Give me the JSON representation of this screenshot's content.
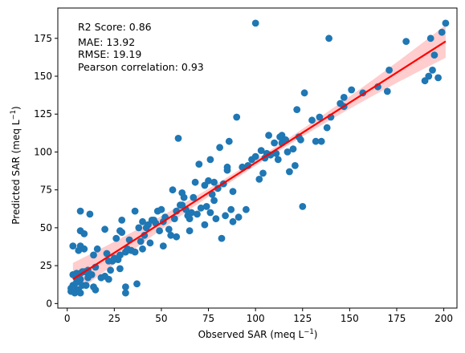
{
  "chart_data": {
    "type": "scatter",
    "title": "",
    "xlabel": "Observed SAR (meq L",
    "xlabel_sup": "−1",
    "xlabel_suffix": ")",
    "ylabel": "Predicted SAR (meq L",
    "ylabel_sup": "−1",
    "ylabel_suffix": ")",
    "xlim": [
      -5,
      207
    ],
    "ylim": [
      -3,
      195
    ],
    "xticks": [
      0,
      25,
      50,
      75,
      100,
      125,
      150,
      175,
      200
    ],
    "yticks": [
      0,
      25,
      50,
      75,
      100,
      125,
      150,
      175
    ],
    "grid": false,
    "stats": [
      "R2 Score: 0.86",
      "MAE: 13.92",
      "RMSE: 19.19",
      "Pearson correlation: 0.93"
    ],
    "colors": {
      "points": "#1f77b4",
      "fit_line": "#ff0000",
      "ci_band": "#ffc0c0"
    },
    "fit_line": {
      "x": [
        3,
        201
      ],
      "y": [
        16,
        173
      ]
    },
    "series": [
      {
        "values_xy": [
          [
            2,
            8
          ],
          [
            2,
            10
          ],
          [
            3,
            12
          ],
          [
            3,
            19
          ],
          [
            3,
            38
          ],
          [
            4,
            7
          ],
          [
            4,
            10
          ],
          [
            5,
            14
          ],
          [
            5,
            17
          ],
          [
            5,
            20
          ],
          [
            6,
            35
          ],
          [
            6,
            9
          ],
          [
            7,
            7
          ],
          [
            7,
            20
          ],
          [
            7,
            38
          ],
          [
            7,
            48
          ],
          [
            7,
            61
          ],
          [
            7,
            16
          ],
          [
            8,
            12
          ],
          [
            8,
            21
          ],
          [
            9,
            21
          ],
          [
            9,
            46
          ],
          [
            9,
            36
          ],
          [
            10,
            12
          ],
          [
            11,
            22
          ],
          [
            11,
            20
          ],
          [
            11,
            17
          ],
          [
            12,
            59
          ],
          [
            13,
            19
          ],
          [
            14,
            32
          ],
          [
            14,
            11
          ],
          [
            15,
            9
          ],
          [
            15,
            24
          ],
          [
            16,
            36
          ],
          [
            18,
            17
          ],
          [
            20,
            18
          ],
          [
            20,
            49
          ],
          [
            21,
            33
          ],
          [
            22,
            28
          ],
          [
            22,
            16
          ],
          [
            23,
            22
          ],
          [
            24,
            28
          ],
          [
            25,
            30
          ],
          [
            26,
            43
          ],
          [
            27,
            29
          ],
          [
            28,
            23
          ],
          [
            28,
            32
          ],
          [
            28,
            48
          ],
          [
            29,
            47
          ],
          [
            29,
            55
          ],
          [
            31,
            34
          ],
          [
            31,
            11
          ],
          [
            31,
            7
          ],
          [
            32,
            36
          ],
          [
            33,
            42
          ],
          [
            34,
            35
          ],
          [
            36,
            34
          ],
          [
            36,
            61
          ],
          [
            37,
            13
          ],
          [
            38,
            50
          ],
          [
            39,
            41
          ],
          [
            40,
            36
          ],
          [
            40,
            54
          ],
          [
            41,
            45
          ],
          [
            42,
            50
          ],
          [
            43,
            52
          ],
          [
            44,
            40
          ],
          [
            45,
            55
          ],
          [
            46,
            55
          ],
          [
            47,
            53
          ],
          [
            48,
            61
          ],
          [
            49,
            48
          ],
          [
            50,
            62
          ],
          [
            51,
            38
          ],
          [
            51,
            54
          ],
          [
            52,
            57
          ],
          [
            54,
            49
          ],
          [
            55,
            45
          ],
          [
            56,
            75
          ],
          [
            57,
            56
          ],
          [
            58,
            61
          ],
          [
            58,
            44
          ],
          [
            59,
            109
          ],
          [
            60,
            65
          ],
          [
            61,
            65
          ],
          [
            61,
            73
          ],
          [
            62,
            70
          ],
          [
            63,
            62
          ],
          [
            64,
            58
          ],
          [
            65,
            48
          ],
          [
            65,
            56
          ],
          [
            66,
            60
          ],
          [
            67,
            70
          ],
          [
            68,
            80
          ],
          [
            69,
            59
          ],
          [
            70,
            92
          ],
          [
            71,
            63
          ],
          [
            73,
            52
          ],
          [
            73,
            78
          ],
          [
            74,
            64
          ],
          [
            75,
            81
          ],
          [
            76,
            95
          ],
          [
            76,
            60
          ],
          [
            77,
            72
          ],
          [
            78,
            80
          ],
          [
            78,
            68
          ],
          [
            79,
            56
          ],
          [
            80,
            76
          ],
          [
            81,
            103
          ],
          [
            82,
            43
          ],
          [
            83,
            79
          ],
          [
            84,
            58
          ],
          [
            85,
            90
          ],
          [
            85,
            88
          ],
          [
            86,
            107
          ],
          [
            87,
            62
          ],
          [
            88,
            54
          ],
          [
            88,
            74
          ],
          [
            90,
            123
          ],
          [
            91,
            57
          ],
          [
            93,
            90
          ],
          [
            95,
            62
          ],
          [
            96,
            91
          ],
          [
            98,
            95
          ],
          [
            100,
            97
          ],
          [
            100,
            185
          ],
          [
            102,
            82
          ],
          [
            103,
            101
          ],
          [
            104,
            86
          ],
          [
            105,
            96
          ],
          [
            106,
            99
          ],
          [
            107,
            111
          ],
          [
            108,
            98
          ],
          [
            110,
            106
          ],
          [
            111,
            99
          ],
          [
            112,
            95
          ],
          [
            113,
            110
          ],
          [
            114,
            106
          ],
          [
            114,
            111
          ],
          [
            116,
            108
          ],
          [
            117,
            100
          ],
          [
            118,
            87
          ],
          [
            120,
            102
          ],
          [
            121,
            91
          ],
          [
            122,
            128
          ],
          [
            123,
            110
          ],
          [
            124,
            108
          ],
          [
            125,
            64
          ],
          [
            126,
            139
          ],
          [
            130,
            121
          ],
          [
            132,
            107
          ],
          [
            134,
            123
          ],
          [
            135,
            107
          ],
          [
            138,
            116
          ],
          [
            139,
            175
          ],
          [
            140,
            123
          ],
          [
            145,
            132
          ],
          [
            147,
            136
          ],
          [
            147,
            130
          ],
          [
            151,
            141
          ],
          [
            157,
            139
          ],
          [
            165,
            143
          ],
          [
            170,
            140
          ],
          [
            171,
            154
          ],
          [
            180,
            173
          ],
          [
            190,
            147
          ],
          [
            192,
            150
          ],
          [
            193,
            175
          ],
          [
            194,
            154
          ],
          [
            195,
            164
          ],
          [
            197,
            149
          ],
          [
            199,
            179
          ],
          [
            201,
            185
          ]
        ]
      }
    ]
  }
}
